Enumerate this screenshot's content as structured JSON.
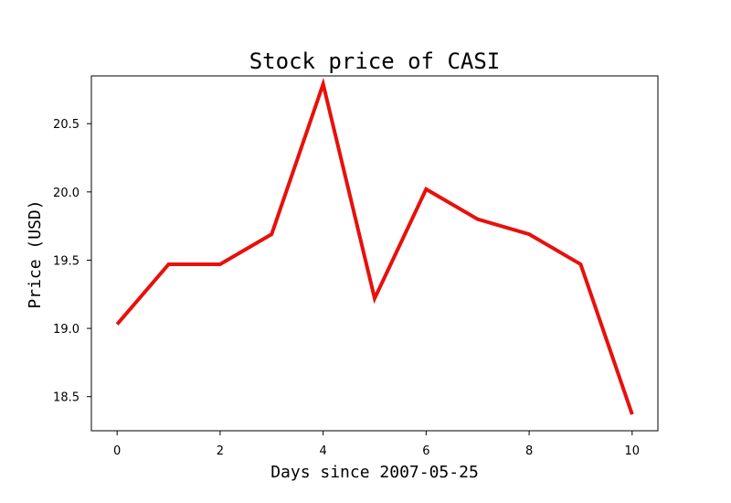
{
  "chart_data": {
    "type": "line",
    "title": "Stock price of CASI",
    "xlabel": "Days since 2007-05-25",
    "ylabel": "Price (USD)",
    "x": [
      0,
      1,
      2,
      3,
      4,
      5,
      6,
      7,
      8,
      9,
      10
    ],
    "series": [
      {
        "values": [
          19.03,
          19.47,
          19.47,
          19.69,
          20.79,
          19.22,
          20.02,
          19.8,
          19.69,
          19.47,
          18.37
        ],
        "color": "#e8100c"
      }
    ],
    "xlim": [
      -0.5,
      10.5
    ],
    "ylim": [
      18.25,
      20.85
    ],
    "xticks": [
      0,
      2,
      4,
      6,
      8,
      10
    ],
    "xtick_labels": [
      "0",
      "2",
      "4",
      "6",
      "8",
      "10"
    ],
    "yticks": [
      18.5,
      19.0,
      19.5,
      20.0,
      20.5
    ],
    "ytick_labels": [
      "18.5",
      "19.0",
      "19.5",
      "20.0",
      "20.5"
    ],
    "grid": false,
    "legend": "none"
  }
}
